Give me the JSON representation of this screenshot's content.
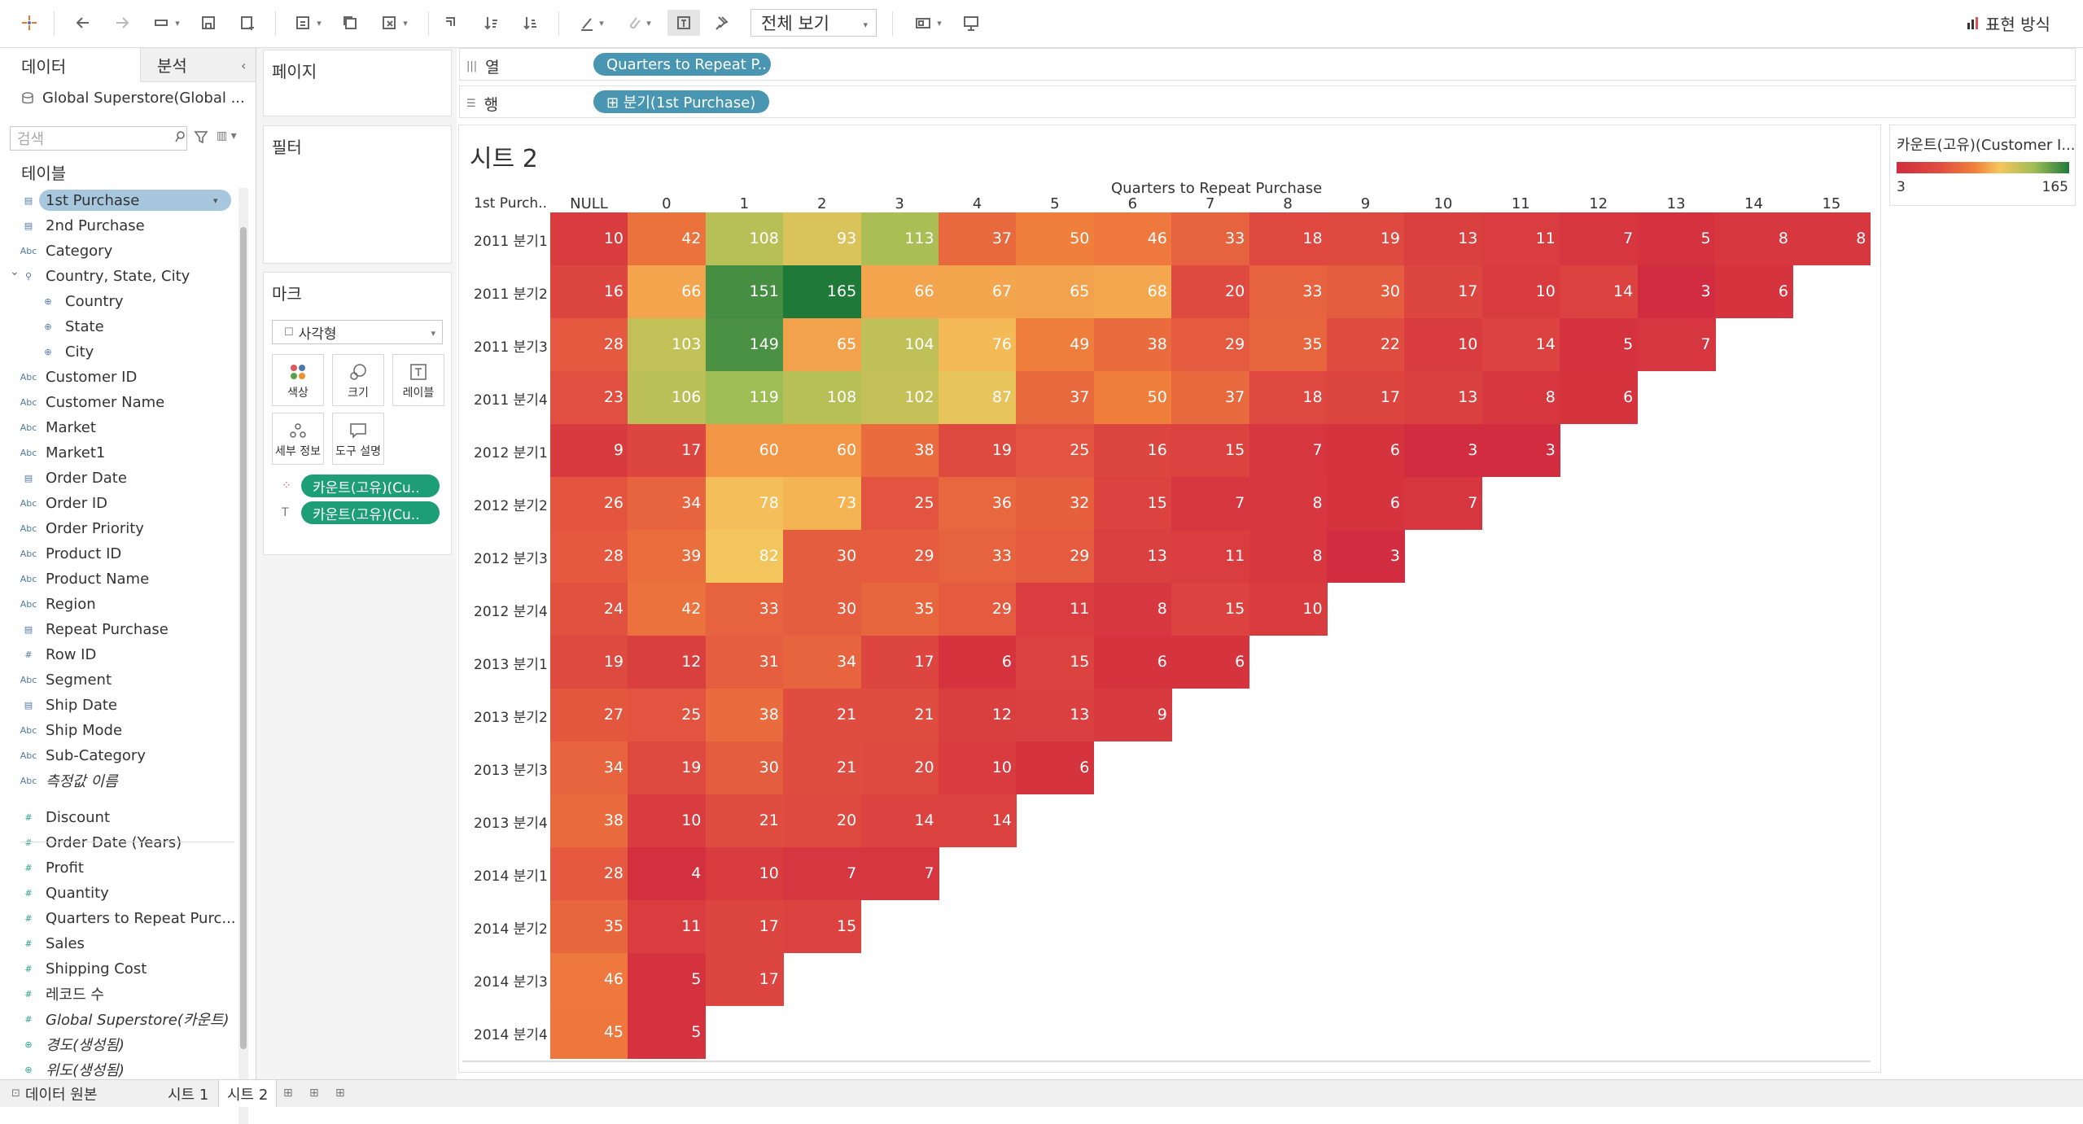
{
  "toolbar": {
    "view_mode": "전체 보기",
    "show_me": "표현 방식"
  },
  "data_pane": {
    "tab_data": "데이터",
    "tab_analysis": "분석",
    "source": "Global Superstore(Global ...",
    "search_placeholder": "검색",
    "tables_header": "테이블",
    "fields": [
      {
        "label": "1st Purchase",
        "icon": "date",
        "selected": true
      },
      {
        "label": "2nd Purchase",
        "icon": "date"
      },
      {
        "label": "Category",
        "icon": "abc"
      },
      {
        "label": "Country, State, City",
        "icon": "hier"
      },
      {
        "label": "Country",
        "icon": "geo",
        "indent": true
      },
      {
        "label": "State",
        "icon": "geo",
        "indent": true
      },
      {
        "label": "City",
        "icon": "geo",
        "indent": true
      },
      {
        "label": "Customer ID",
        "icon": "abc"
      },
      {
        "label": "Customer Name",
        "icon": "abc"
      },
      {
        "label": "Market",
        "icon": "abc"
      },
      {
        "label": "Market1",
        "icon": "abc"
      },
      {
        "label": "Order Date",
        "icon": "date"
      },
      {
        "label": "Order ID",
        "icon": "abc"
      },
      {
        "label": "Order Priority",
        "icon": "abc"
      },
      {
        "label": "Product ID",
        "icon": "abc"
      },
      {
        "label": "Product Name",
        "icon": "abc"
      },
      {
        "label": "Region",
        "icon": "abc"
      },
      {
        "label": "Repeat Purchase",
        "icon": "date"
      },
      {
        "label": "Row ID",
        "icon": "num"
      },
      {
        "label": "Segment",
        "icon": "abc"
      },
      {
        "label": "Ship Date",
        "icon": "date"
      },
      {
        "label": "Ship Mode",
        "icon": "abc"
      },
      {
        "label": "Sub-Category",
        "icon": "abc"
      },
      {
        "label": "측정값 이름",
        "icon": "abc",
        "italic": true
      },
      {
        "label": "Discount",
        "icon": "num",
        "measure": true
      },
      {
        "label": "Order Date (Years)",
        "icon": "num",
        "measure": true
      },
      {
        "label": "Profit",
        "icon": "num",
        "measure": true
      },
      {
        "label": "Quantity",
        "icon": "num",
        "measure": true
      },
      {
        "label": "Quarters to Repeat Purc...",
        "icon": "num",
        "measure": true
      },
      {
        "label": "Sales",
        "icon": "num",
        "measure": true
      },
      {
        "label": "Shipping Cost",
        "icon": "num",
        "measure": true
      },
      {
        "label": "레코드 수",
        "icon": "num",
        "measure": true
      },
      {
        "label": "Global Superstore(카운트)",
        "icon": "num",
        "measure": true,
        "italic": true
      },
      {
        "label": "경도(생성됨)",
        "icon": "geo",
        "measure": true,
        "italic": true
      },
      {
        "label": "위도(생성됨)",
        "icon": "geo",
        "measure": true,
        "italic": true
      }
    ]
  },
  "shelves": {
    "pages": "페이지",
    "filters": "필터",
    "marks": "마크",
    "mark_type": "사각형",
    "mark_buttons": [
      "색상",
      "크기",
      "레이블",
      "세부 정보",
      "도구 설명"
    ],
    "mark_pills": [
      "카운트(고유)(Cu..",
      "카운트(고유)(Cu.."
    ],
    "columns_label": "열",
    "rows_label": "행",
    "columns_pill": "Quarters to Repeat P..",
    "rows_pill": "⊞ 분기(1st Purchase)"
  },
  "sheet": {
    "title": "시트 2",
    "col_title": "Quarters to Repeat Purchase",
    "row_title": "1st Purch..",
    "columns": [
      "NULL",
      "0",
      "1",
      "2",
      "3",
      "4",
      "5",
      "6",
      "7",
      "8",
      "9",
      "10",
      "11",
      "12",
      "13",
      "14",
      "15"
    ],
    "rows": [
      "2011 분기1",
      "2011 분기2",
      "2011 분기3",
      "2011 분기4",
      "2012 분기1",
      "2012 분기2",
      "2012 분기3",
      "2012 분기4",
      "2013 분기1",
      "2013 분기2",
      "2013 분기3",
      "2013 분기4",
      "2014 분기1",
      "2014 분기2",
      "2014 분기3",
      "2014 분기4"
    ],
    "values": [
      [
        10,
        42,
        108,
        93,
        113,
        37,
        50,
        46,
        33,
        18,
        19,
        13,
        11,
        7,
        5,
        8,
        8
      ],
      [
        16,
        66,
        151,
        165,
        66,
        67,
        65,
        68,
        20,
        33,
        30,
        17,
        10,
        14,
        3,
        6
      ],
      [
        28,
        103,
        149,
        65,
        104,
        76,
        49,
        38,
        29,
        35,
        22,
        10,
        14,
        5,
        7
      ],
      [
        23,
        106,
        119,
        108,
        102,
        87,
        37,
        50,
        37,
        18,
        17,
        13,
        8,
        6
      ],
      [
        9,
        17,
        60,
        60,
        38,
        19,
        25,
        16,
        15,
        7,
        6,
        3,
        3
      ],
      [
        26,
        34,
        78,
        73,
        25,
        36,
        32,
        15,
        7,
        8,
        6,
        7
      ],
      [
        28,
        39,
        82,
        30,
        29,
        33,
        29,
        13,
        11,
        8,
        3
      ],
      [
        24,
        42,
        33,
        30,
        35,
        29,
        11,
        8,
        15,
        10
      ],
      [
        19,
        12,
        31,
        34,
        17,
        6,
        15,
        6,
        6
      ],
      [
        27,
        25,
        38,
        21,
        21,
        12,
        13,
        9
      ],
      [
        34,
        19,
        30,
        21,
        20,
        10,
        6
      ],
      [
        38,
        10,
        21,
        20,
        14,
        14
      ],
      [
        28,
        4,
        10,
        7,
        7
      ],
      [
        35,
        11,
        17,
        15
      ],
      [
        46,
        5,
        17
      ],
      [
        45,
        5
      ]
    ]
  },
  "legend": {
    "title": "카운트(고유)(Customer I...",
    "min": "3",
    "max": "165",
    "colors": [
      "#d12c3f",
      "#e04d40",
      "#f0803c",
      "#f5c65d",
      "#9dbd55",
      "#1f7a3a"
    ]
  },
  "bottom_tabs": {
    "data_source": "데이터 원본",
    "sheet1": "시트 1",
    "sheet2": "시트 2"
  }
}
